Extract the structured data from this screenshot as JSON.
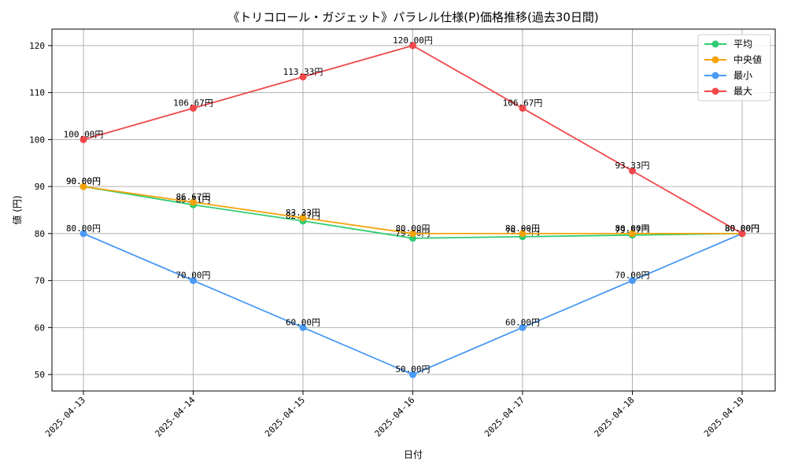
{
  "chart_data": {
    "type": "line",
    "title": "《トリコロール・ガジェット》パラレル仕様(P)価格推移(過去30日間)",
    "xlabel": "日付",
    "ylabel": "値 (円)",
    "categories": [
      "2025-04-13",
      "2025-04-14",
      "2025-04-15",
      "2025-04-16",
      "2025-04-17",
      "2025-04-18",
      "2025-04-19"
    ],
    "ylim": [
      46.5,
      123.5
    ],
    "yticks": [
      50,
      60,
      70,
      80,
      90,
      100,
      110,
      120
    ],
    "grid": true,
    "legend_position": "top-right",
    "label_suffix": "円",
    "series": [
      {
        "name": "平均",
        "color": "#2ecc71",
        "values": [
          90.0,
          86.11,
          82.67,
          79.0,
          79.33,
          79.67,
          80.0
        ]
      },
      {
        "name": "中央値",
        "color": "#f5a30b",
        "values": [
          90.0,
          86.67,
          83.33,
          80.0,
          80.0,
          80.0,
          80.0
        ]
      },
      {
        "name": "最小",
        "color": "#4a9af5",
        "values": [
          80.0,
          70.0,
          60.0,
          50.0,
          60.0,
          70.0,
          80.0
        ]
      },
      {
        "name": "最大",
        "color": "#f0484a",
        "values": [
          100.0,
          106.67,
          113.33,
          120.0,
          106.67,
          93.33,
          80.0
        ]
      }
    ]
  }
}
